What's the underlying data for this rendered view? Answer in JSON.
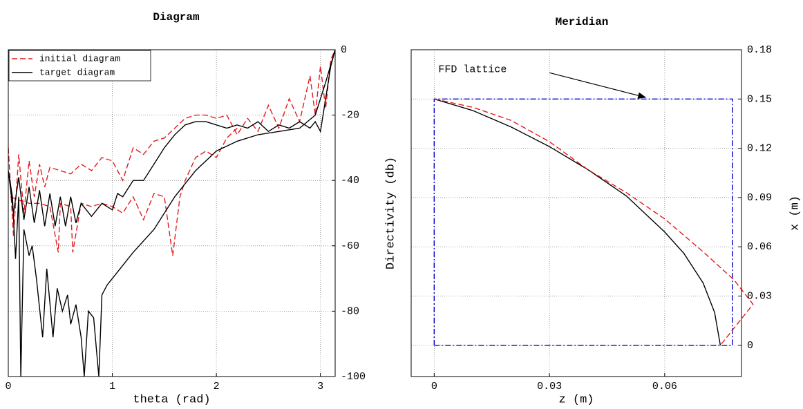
{
  "chart_data": [
    {
      "type": "line",
      "title": "Diagram",
      "xlabel": "theta (rad)",
      "ylabel": "Directivity (db)",
      "xlim": [
        0,
        3.1416
      ],
      "ylim": [
        -100,
        0
      ],
      "xticks": [
        0,
        1,
        2,
        3
      ],
      "yticks": [
        -100,
        -80,
        -60,
        -40,
        -20,
        0
      ],
      "grid": true,
      "legend": "upper left",
      "yaxis_side": "right",
      "series": [
        {
          "name": "initial diagram",
          "color": "#e31a1c",
          "dash": "dashed",
          "x": [
            0,
            0.05,
            0.1,
            0.15,
            0.2,
            0.25,
            0.3,
            0.35,
            0.4,
            0.5,
            0.6,
            0.7,
            0.8,
            0.9,
            1.0,
            1.1,
            1.2,
            1.3,
            1.4,
            1.5,
            1.6,
            1.7,
            1.8,
            1.9,
            2.0,
            2.1,
            2.2,
            2.3,
            2.4,
            2.5,
            2.6,
            2.7,
            2.8,
            2.9,
            2.95,
            3.0,
            3.05,
            3.1,
            3.1416
          ],
          "y": [
            -30,
            -57,
            -32,
            -50,
            -34,
            -45,
            -35,
            -42,
            -36,
            -37,
            -38,
            -35,
            -37,
            -33,
            -34,
            -40,
            -30,
            -32,
            -28,
            -27,
            -24,
            -21,
            -20,
            -20,
            -21,
            -20,
            -26,
            -21,
            -25,
            -17,
            -24,
            -15,
            -22,
            -8,
            -20,
            -5,
            -18,
            -3,
            0
          ]
        },
        {
          "color": "#e31a1c",
          "dash": "dashed",
          "x": [
            0.02,
            0.1,
            0.2,
            0.3,
            0.4,
            0.48,
            0.5,
            0.6,
            0.62,
            0.7,
            0.8,
            0.9,
            1.0,
            1.1,
            1.2,
            1.3,
            1.4,
            1.5,
            1.58,
            1.65,
            1.7,
            1.8,
            1.9,
            2.0,
            2.1,
            2.2
          ],
          "y": [
            -45,
            -46,
            -47,
            -47,
            -48,
            -62,
            -47,
            -48,
            -62,
            -47,
            -48,
            -47,
            -48,
            -50,
            -45,
            -52,
            -44,
            -45,
            -63,
            -45,
            -40,
            -33,
            -31,
            -33,
            -27,
            -24
          ]
        },
        {
          "name": "target diagram",
          "color": "#000000",
          "dash": "solid",
          "x": [
            0,
            0.05,
            0.1,
            0.15,
            0.2,
            0.25,
            0.3,
            0.35,
            0.4,
            0.45,
            0.5,
            0.55,
            0.6,
            0.65,
            0.7,
            0.8,
            0.9,
            1.0,
            1.05,
            1.1,
            1.2,
            1.3,
            1.4,
            1.5,
            1.6,
            1.7,
            1.8,
            1.9,
            2.0,
            2.1,
            2.2,
            2.3,
            2.4,
            2.5,
            2.6,
            2.7,
            2.8,
            2.9,
            2.95,
            3.0,
            3.05,
            3.1,
            3.1416
          ],
          "y": [
            -37,
            -50,
            -39,
            -52,
            -42,
            -53,
            -43,
            -54,
            -44,
            -54,
            -45,
            -54,
            -45,
            -53,
            -47,
            -51,
            -47,
            -49,
            -44,
            -45,
            -40,
            -40,
            -35,
            -30,
            -26,
            -23,
            -22,
            -22,
            -23,
            -24,
            -23,
            -24,
            -22,
            -25,
            -23,
            -24,
            -22,
            -24,
            -22,
            -25,
            -15,
            -5,
            0
          ]
        },
        {
          "color": "#000000",
          "dash": "solid",
          "x": [
            0,
            0.04,
            0.07,
            0.1,
            0.12,
            0.15,
            0.2,
            0.23,
            0.27,
            0.33,
            0.37,
            0.43,
            0.47,
            0.52,
            0.57,
            0.6,
            0.65,
            0.7,
            0.73,
            0.77,
            0.82,
            0.87,
            0.9,
            0.95,
            1.0,
            1.1,
            1.2,
            1.4,
            1.6,
            1.8,
            2.0,
            2.2,
            2.4,
            2.6,
            2.8,
            2.95,
            3.05,
            3.1416
          ],
          "y": [
            -37,
            -45,
            -64,
            -45,
            -100,
            -55,
            -63,
            -60,
            -70,
            -88,
            -67,
            -88,
            -73,
            -80,
            -75,
            -84,
            -78,
            -88,
            -100,
            -80,
            -82,
            -100,
            -75,
            -72,
            -70,
            -66,
            -62,
            -55,
            -45,
            -37,
            -31,
            -28,
            -26,
            -25,
            -24,
            -20,
            -10,
            0
          ]
        }
      ]
    },
    {
      "type": "line",
      "title": "Meridian",
      "xlabel": "z (m)",
      "ylabel": "x (m)",
      "xlim": [
        -0.006,
        0.08
      ],
      "ylim": [
        -0.019,
        0.18
      ],
      "xticks": [
        0,
        0.03,
        0.06
      ],
      "yticks": [
        0,
        0.03,
        0.06,
        0.09,
        0.12,
        0.15,
        0.18
      ],
      "grid": true,
      "yaxis_side": "right",
      "annotation": "FFD lattice",
      "series": [
        {
          "color": "#0000cc",
          "dash": "dashdot",
          "x": [
            0,
            0.0776,
            0.0776,
            0,
            0
          ],
          "y": [
            0,
            0,
            0.15,
            0.15,
            0
          ]
        },
        {
          "color": "#000000",
          "dash": "solid",
          "x": [
            0,
            0.01,
            0.02,
            0.03,
            0.04,
            0.05,
            0.06,
            0.065,
            0.07,
            0.073,
            0.0745
          ],
          "y": [
            0.15,
            0.143,
            0.133,
            0.121,
            0.107,
            0.091,
            0.069,
            0.056,
            0.038,
            0.02,
            0
          ]
        },
        {
          "color": "#e31a1c",
          "dash": "dashed",
          "x": [
            0,
            0.01,
            0.02,
            0.03,
            0.04,
            0.05,
            0.06,
            0.07,
            0.078,
            0.083,
            0.0745
          ],
          "y": [
            0.15,
            0.145,
            0.137,
            0.124,
            0.107,
            0.093,
            0.077,
            0.057,
            0.04,
            0.025,
            0
          ]
        }
      ]
    }
  ]
}
